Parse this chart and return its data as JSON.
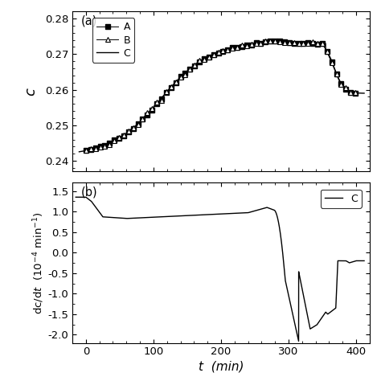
{
  "title_a": "(a)",
  "title_b": "(b)",
  "xlabel": "t  (min)",
  "ylabel_a": "c",
  "xlim": [
    -20,
    420
  ],
  "ylim_a": [
    0.237,
    0.282
  ],
  "ylim_b": [
    -2.2,
    1.7
  ],
  "yticks_a": [
    0.24,
    0.25,
    0.26,
    0.27,
    0.28
  ],
  "yticks_b": [
    -2.0,
    -1.5,
    -1.0,
    -0.5,
    0.0,
    0.5,
    1.0,
    1.5
  ],
  "xticks": [
    0,
    100,
    200,
    300,
    400
  ],
  "bg_color": "#ffffff",
  "line_color": "#000000"
}
